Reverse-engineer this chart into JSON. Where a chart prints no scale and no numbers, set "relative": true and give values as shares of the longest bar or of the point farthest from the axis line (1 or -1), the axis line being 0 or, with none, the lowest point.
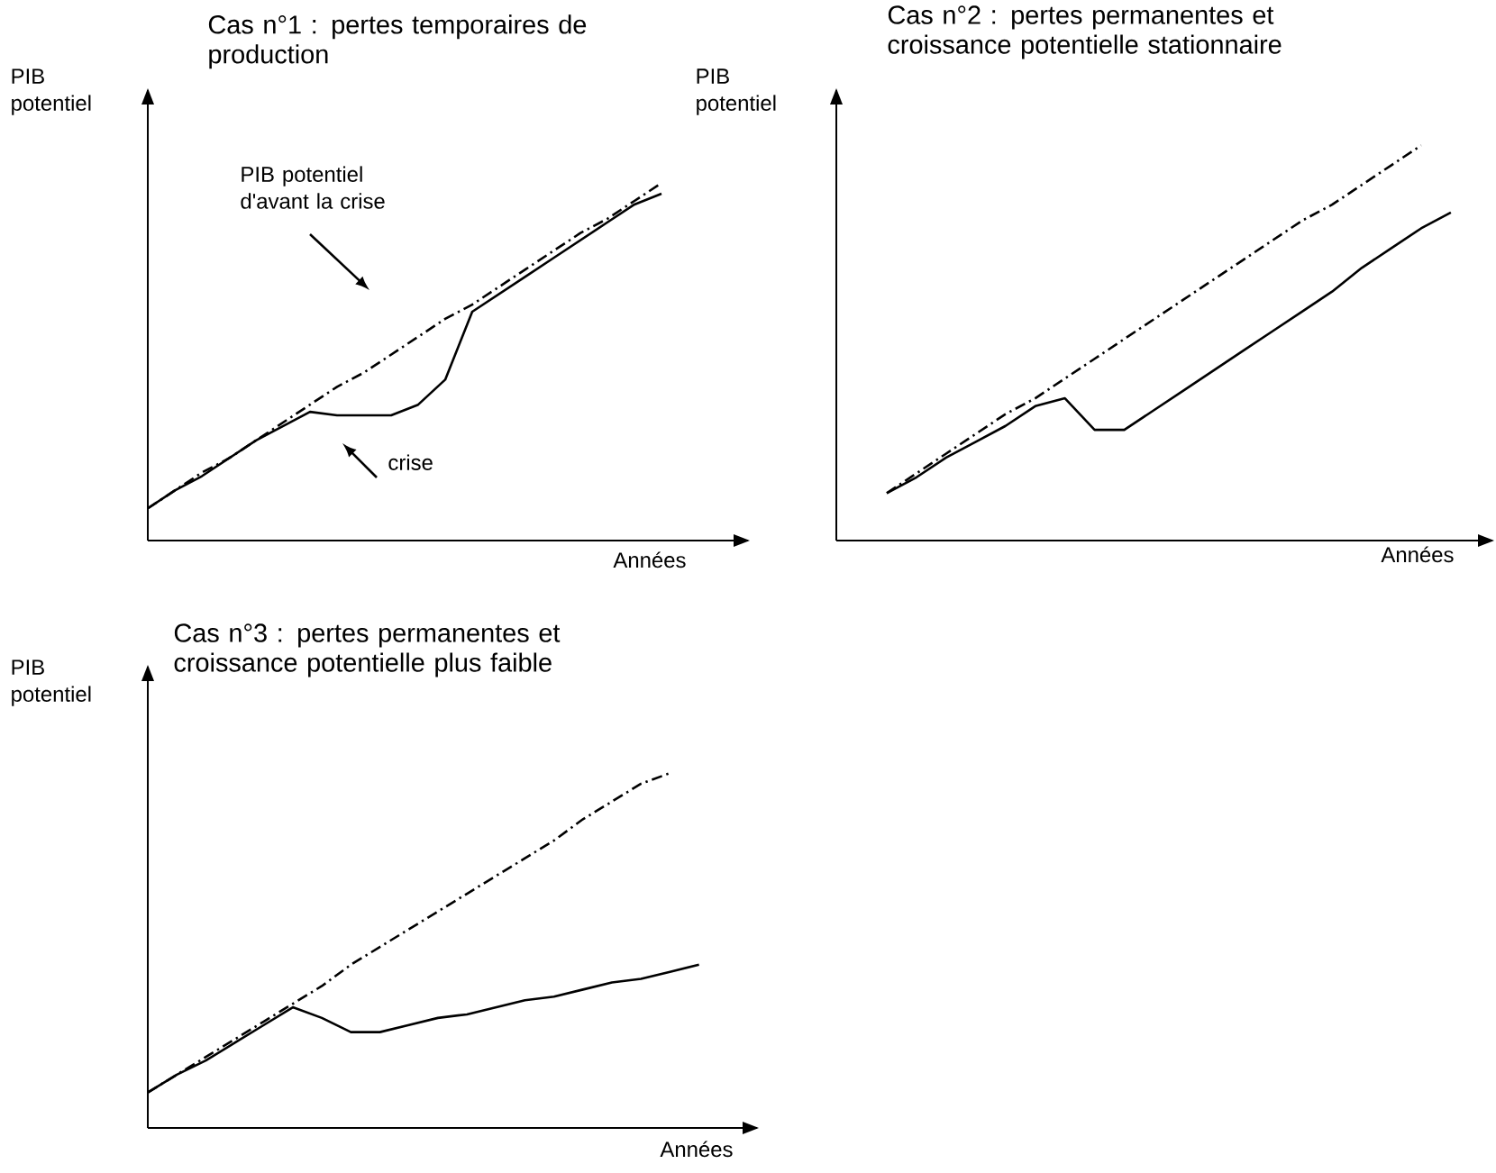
{
  "chart_data": [
    {
      "type": "line",
      "title": "Cas n°1 : pertes temporaires de production",
      "xlabel": "Années",
      "ylabel": "PIB potentiel",
      "relative": true,
      "marker": "none",
      "categories": [
        null,
        null,
        null,
        null,
        null,
        null,
        null,
        null,
        null,
        null,
        null,
        null,
        null,
        null,
        null,
        null,
        null,
        null,
        null,
        null
      ],
      "series": [
        {
          "color": "#000000",
          "line_style": "dashdot",
          "values": [
            0.09,
            0.14,
            0.19,
            0.23,
            0.28,
            0.33,
            0.38,
            0.43,
            0.47,
            0.52,
            0.57,
            0.62,
            0.66,
            0.71,
            0.76,
            0.81,
            0.86,
            0.9,
            0.95,
            1
          ]
        },
        {
          "color": "#000000",
          "line_style": "solid",
          "values": [
            0.09,
            0.14,
            0.18,
            0.23,
            0.28,
            0.32,
            0.36,
            0.35,
            0.35,
            0.35,
            0.38,
            0.45,
            0.64,
            0.69,
            0.74,
            0.79,
            0.84,
            0.89,
            0.94,
            0.97
          ]
        }
      ],
      "annotations": [
        "PIB potentiel d'avant la crise",
        "crise"
      ]
    },
    {
      "type": "line",
      "title": "Cas n°2 : pertes permanentes et croissance potentielle stationnaire",
      "xlabel": "Années",
      "ylabel": "PIB potentiel",
      "relative": true,
      "marker": "none",
      "categories": [
        null,
        null,
        null,
        null,
        null,
        null,
        null,
        null,
        null,
        null,
        null,
        null,
        null,
        null,
        null,
        null,
        null,
        null,
        null,
        null
      ],
      "series": [
        {
          "color": "#000000",
          "line_style": "dashdot",
          "values": [
            0.12,
            0.17,
            0.22,
            0.27,
            0.32,
            0.36,
            0.41,
            0.46,
            0.51,
            0.56,
            0.61,
            0.66,
            0.71,
            0.76,
            0.81,
            0.85,
            0.9,
            0.95,
            1,
            null
          ]
        },
        {
          "color": "#000000",
          "line_style": "solid",
          "values": [
            0.12,
            0.16,
            0.21,
            0.25,
            0.29,
            0.34,
            0.36,
            0.28,
            0.28,
            0.33,
            0.38,
            0.43,
            0.48,
            0.53,
            0.58,
            0.63,
            0.69,
            0.74,
            0.79,
            0.83
          ]
        }
      ]
    },
    {
      "type": "line",
      "title": "Cas n°3 : pertes permanentes et croissance potentielle plus faible",
      "xlabel": "Années",
      "ylabel": "PIB potentiel",
      "relative": true,
      "marker": "none",
      "categories": [
        null,
        null,
        null,
        null,
        null,
        null,
        null,
        null,
        null,
        null,
        null,
        null,
        null,
        null,
        null,
        null,
        null,
        null,
        null,
        null
      ],
      "series": [
        {
          "color": "#000000",
          "line_style": "dashdot",
          "values": [
            0.1,
            0.15,
            0.2,
            0.25,
            0.3,
            0.35,
            0.4,
            0.46,
            0.51,
            0.56,
            0.61,
            0.66,
            0.71,
            0.76,
            0.81,
            0.87,
            0.92,
            0.97,
            1,
            null
          ]
        },
        {
          "color": "#000000",
          "line_style": "solid",
          "values": [
            0.1,
            0.15,
            0.19,
            0.24,
            0.29,
            0.34,
            0.31,
            0.27,
            0.27,
            0.29,
            0.31,
            0.32,
            0.34,
            0.36,
            0.37,
            0.39,
            0.41,
            0.42,
            0.44,
            0.46
          ]
        }
      ]
    }
  ]
}
